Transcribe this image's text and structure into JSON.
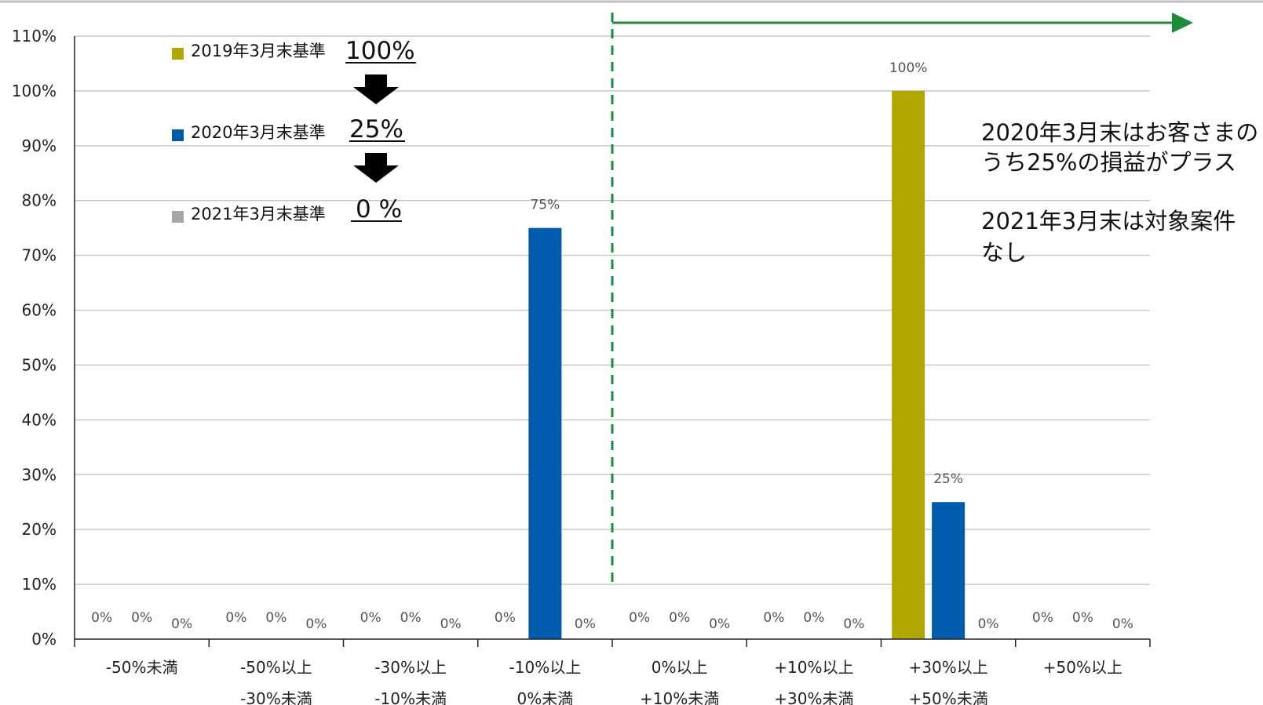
{
  "chart_data": {
    "type": "bar",
    "categories": [
      [
        "-50%未満",
        ""
      ],
      [
        "-50%以上",
        "-30%未満"
      ],
      [
        "-30%以上",
        "-10%未満"
      ],
      [
        "-10%以上",
        "0%未満"
      ],
      [
        "0%以上",
        "+10%未満"
      ],
      [
        "+10%以上",
        "+30%未満"
      ],
      [
        "+30%以上",
        "+50%未満"
      ],
      [
        "+50%以上",
        ""
      ]
    ],
    "series": [
      {
        "key": "s2019",
        "color": "#b0a800",
        "values": [
          0,
          0,
          0,
          0,
          0,
          0,
          100,
          0
        ],
        "labels": [
          "0%",
          "0%",
          "0%",
          "0%",
          "0%",
          "0%",
          "100%",
          "0%"
        ]
      },
      {
        "key": "s2020",
        "color": "#005bac",
        "values": [
          0,
          0,
          0,
          75,
          0,
          0,
          25,
          0
        ],
        "labels": [
          "0%",
          "0%",
          "0%",
          "75%",
          "0%",
          "0%",
          "25%",
          "0%"
        ]
      },
      {
        "key": "s2021",
        "color": "#a6a6a6",
        "values": [
          0,
          0,
          0,
          0,
          0,
          0,
          0,
          0
        ],
        "labels": [
          "0%",
          "0%",
          "0%",
          "0%",
          "0%",
          "0%",
          "0%",
          "0%"
        ]
      }
    ],
    "ylim": [
      0,
      110
    ],
    "yticks": [
      "0%",
      "10%",
      "20%",
      "30%",
      "40%",
      "50%",
      "60%",
      "70%",
      "80%",
      "90%",
      "100%",
      "110%"
    ],
    "grid": true,
    "divider_after_category": 3
  },
  "legend": [
    {
      "label": "2019年3月末基準",
      "value": "100%",
      "color": "#b0a800"
    },
    {
      "label": "2020年3月末基準",
      "value": "25%",
      "color": "#005bac"
    },
    {
      "label": "2021年3月末基準",
      "value": "0 %",
      "color": "#a6a6a6"
    }
  ],
  "arrow_color": "#1a8c3c",
  "note_lines": [
    "2020年3月末はお客さまの",
    "うち25%の損益がプラス",
    "",
    "2021年3月末は対象案件",
    "なし"
  ]
}
